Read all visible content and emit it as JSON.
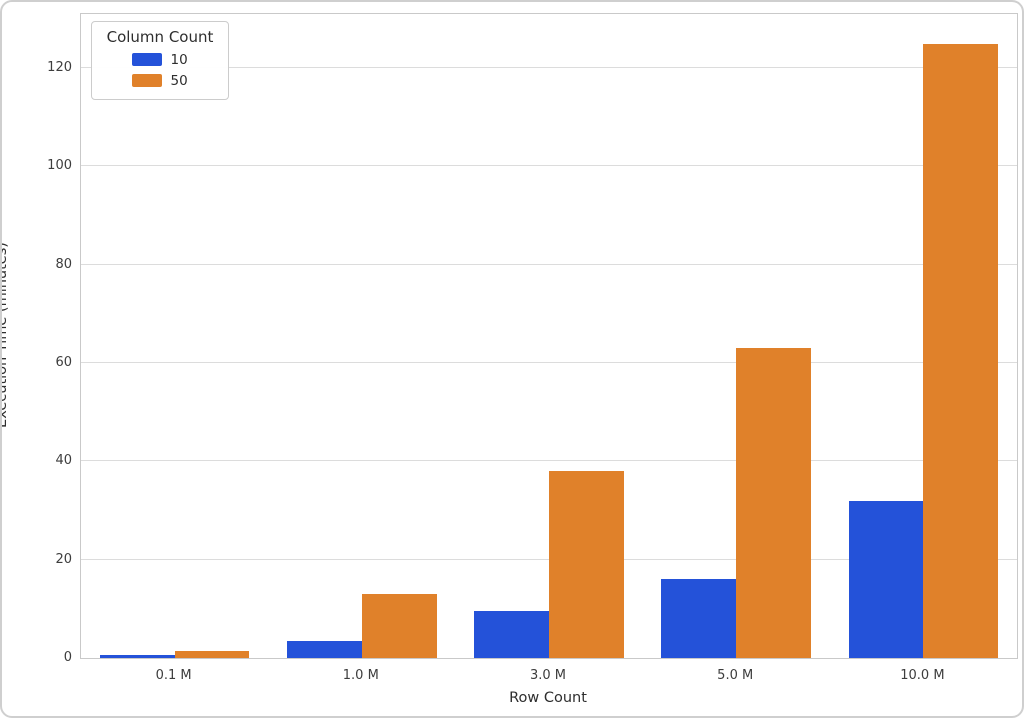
{
  "chart_data": {
    "type": "bar",
    "title": "",
    "xlabel": "Row Count",
    "ylabel": "Execution Time (minutes)",
    "categories": [
      "0.1 M",
      "1.0 M",
      "3.0 M",
      "5.0 M",
      "10.0 M"
    ],
    "series": [
      {
        "name": "10",
        "color": "#2452d9",
        "values": [
          0.7,
          3.5,
          9.5,
          16,
          32
        ]
      },
      {
        "name": "50",
        "color": "#e0812a",
        "values": [
          1.5,
          13,
          38,
          63,
          125
        ]
      }
    ],
    "legend": {
      "title": "Column Count",
      "position": "upper-left"
    },
    "yticks": [
      0,
      20,
      40,
      60,
      80,
      100,
      120
    ],
    "ylim": [
      0,
      131
    ],
    "grid": "horizontal",
    "bar_group_width_fraction": 0.8,
    "colors": {
      "gridline": "#dcdcdc",
      "spine": "#c9c9c9",
      "tick_text": "#3d3d3d",
      "background": "#ffffff",
      "frame_border": "#cfcfcf"
    }
  }
}
